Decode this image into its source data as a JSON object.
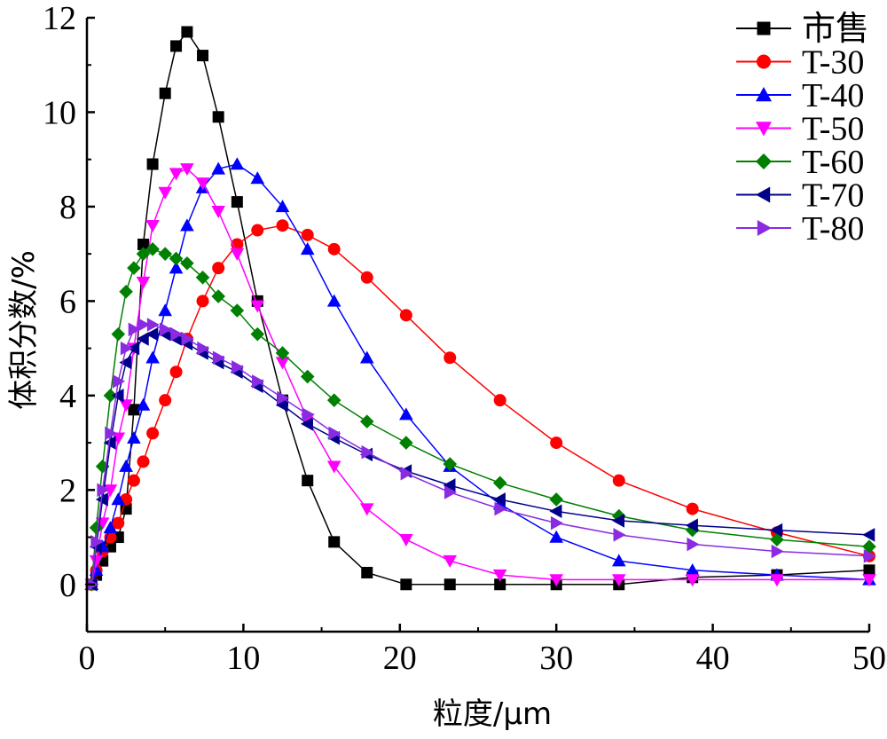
{
  "chart_data": {
    "type": "line",
    "xlabel": "粒度/μm",
    "ylabel": "体积分数/%",
    "xlim": [
      0,
      50
    ],
    "ylim": [
      -1,
      12
    ],
    "xticks": [
      0,
      10,
      20,
      30,
      40,
      50
    ],
    "yticks": [
      0,
      2,
      4,
      6,
      8,
      10,
      12
    ],
    "legend_position": "top-right",
    "series": [
      {
        "name": "市售",
        "color": "#000000",
        "marker": "square",
        "points": [
          [
            0.3,
            0.0
          ],
          [
            0.6,
            0.2
          ],
          [
            1.0,
            0.5
          ],
          [
            1.5,
            0.8
          ],
          [
            2.0,
            1.0
          ],
          [
            2.5,
            1.6
          ],
          [
            3.0,
            3.7
          ],
          [
            3.6,
            7.2
          ],
          [
            4.2,
            8.9
          ],
          [
            5.0,
            10.4
          ],
          [
            5.7,
            11.4
          ],
          [
            6.4,
            11.7
          ],
          [
            7.4,
            11.2
          ],
          [
            8.4,
            9.9
          ],
          [
            9.6,
            8.1
          ],
          [
            10.9,
            6.0
          ],
          [
            12.5,
            3.9
          ],
          [
            14.1,
            2.2
          ],
          [
            15.8,
            0.9
          ],
          [
            17.9,
            0.25
          ],
          [
            20.4,
            0.0
          ],
          [
            23.2,
            0.0
          ],
          [
            26.4,
            0.0
          ],
          [
            30.0,
            0.0
          ],
          [
            34.0,
            0.0
          ],
          [
            38.7,
            0.15
          ],
          [
            44.1,
            0.2
          ],
          [
            50.0,
            0.3
          ]
        ]
      },
      {
        "name": "T-30",
        "color": "#ff0000",
        "marker": "circle",
        "points": [
          [
            0.3,
            0.0
          ],
          [
            0.6,
            0.3
          ],
          [
            1.0,
            0.7
          ],
          [
            1.5,
            1.0
          ],
          [
            2.0,
            1.3
          ],
          [
            2.5,
            1.8
          ],
          [
            3.0,
            2.2
          ],
          [
            3.6,
            2.6
          ],
          [
            4.2,
            3.2
          ],
          [
            5.0,
            3.9
          ],
          [
            5.7,
            4.5
          ],
          [
            6.4,
            5.2
          ],
          [
            7.4,
            6.0
          ],
          [
            8.4,
            6.7
          ],
          [
            9.6,
            7.2
          ],
          [
            10.9,
            7.5
          ],
          [
            12.5,
            7.6
          ],
          [
            14.1,
            7.4
          ],
          [
            15.8,
            7.1
          ],
          [
            17.9,
            6.5
          ],
          [
            20.4,
            5.7
          ],
          [
            23.2,
            4.8
          ],
          [
            26.4,
            3.9
          ],
          [
            30.0,
            3.0
          ],
          [
            34.0,
            2.2
          ],
          [
            38.7,
            1.6
          ],
          [
            44.1,
            1.1
          ],
          [
            50.0,
            0.6
          ]
        ]
      },
      {
        "name": "T-40",
        "color": "#0000ff",
        "marker": "triangle-up",
        "points": [
          [
            0.3,
            0.0
          ],
          [
            0.6,
            0.3
          ],
          [
            1.0,
            0.8
          ],
          [
            1.5,
            1.2
          ],
          [
            2.0,
            1.8
          ],
          [
            2.5,
            2.5
          ],
          [
            3.0,
            3.1
          ],
          [
            3.6,
            3.8
          ],
          [
            4.2,
            4.8
          ],
          [
            5.0,
            5.8
          ],
          [
            5.7,
            6.7
          ],
          [
            6.4,
            7.6
          ],
          [
            7.4,
            8.4
          ],
          [
            8.4,
            8.8
          ],
          [
            9.6,
            8.9
          ],
          [
            10.9,
            8.6
          ],
          [
            12.5,
            8.0
          ],
          [
            14.1,
            7.1
          ],
          [
            15.8,
            6.0
          ],
          [
            17.9,
            4.8
          ],
          [
            20.4,
            3.6
          ],
          [
            23.2,
            2.5
          ],
          [
            26.4,
            1.7
          ],
          [
            30.0,
            1.0
          ],
          [
            34.0,
            0.5
          ],
          [
            38.7,
            0.3
          ],
          [
            44.1,
            0.2
          ],
          [
            50.0,
            0.1
          ]
        ]
      },
      {
        "name": "T-50",
        "color": "#ff00ff",
        "marker": "triangle-down",
        "points": [
          [
            0.3,
            0.0
          ],
          [
            0.6,
            0.5
          ],
          [
            1.0,
            1.3
          ],
          [
            1.5,
            2.0
          ],
          [
            2.0,
            3.1
          ],
          [
            2.5,
            3.8
          ],
          [
            3.0,
            5.0
          ],
          [
            3.6,
            6.4
          ],
          [
            4.2,
            7.6
          ],
          [
            5.0,
            8.3
          ],
          [
            5.7,
            8.7
          ],
          [
            6.4,
            8.8
          ],
          [
            7.4,
            8.5
          ],
          [
            8.4,
            7.9
          ],
          [
            9.6,
            7.0
          ],
          [
            10.9,
            5.9
          ],
          [
            12.5,
            4.7
          ],
          [
            14.1,
            3.5
          ],
          [
            15.8,
            2.5
          ],
          [
            17.9,
            1.6
          ],
          [
            20.4,
            0.95
          ],
          [
            23.2,
            0.5
          ],
          [
            26.4,
            0.2
          ],
          [
            30.0,
            0.1
          ],
          [
            34.0,
            0.1
          ],
          [
            38.7,
            0.1
          ],
          [
            44.1,
            0.1
          ],
          [
            50.0,
            0.1
          ]
        ]
      },
      {
        "name": "T-60",
        "color": "#008000",
        "marker": "diamond",
        "points": [
          [
            0.3,
            0.0
          ],
          [
            0.6,
            1.2
          ],
          [
            1.0,
            2.5
          ],
          [
            1.5,
            4.0
          ],
          [
            2.0,
            5.3
          ],
          [
            2.5,
            6.2
          ],
          [
            3.0,
            6.7
          ],
          [
            3.6,
            7.0
          ],
          [
            4.2,
            7.1
          ],
          [
            5.0,
            7.0
          ],
          [
            5.7,
            6.9
          ],
          [
            6.4,
            6.8
          ],
          [
            7.4,
            6.5
          ],
          [
            8.4,
            6.1
          ],
          [
            9.6,
            5.8
          ],
          [
            10.9,
            5.3
          ],
          [
            12.5,
            4.9
          ],
          [
            14.1,
            4.4
          ],
          [
            15.8,
            3.9
          ],
          [
            17.9,
            3.45
          ],
          [
            20.4,
            3.0
          ],
          [
            23.2,
            2.55
          ],
          [
            26.4,
            2.15
          ],
          [
            30.0,
            1.8
          ],
          [
            34.0,
            1.45
          ],
          [
            38.7,
            1.15
          ],
          [
            44.1,
            0.95
          ],
          [
            50.0,
            0.8
          ]
        ]
      },
      {
        "name": "T-70",
        "color": "#00008b",
        "marker": "triangle-left",
        "points": [
          [
            0.3,
            0.0
          ],
          [
            0.6,
            0.8
          ],
          [
            1.0,
            1.8
          ],
          [
            1.5,
            3.0
          ],
          [
            2.0,
            4.0
          ],
          [
            2.5,
            4.7
          ],
          [
            3.0,
            5.0
          ],
          [
            3.6,
            5.2
          ],
          [
            4.2,
            5.3
          ],
          [
            5.0,
            5.3
          ],
          [
            5.7,
            5.2
          ],
          [
            6.4,
            5.1
          ],
          [
            7.4,
            4.9
          ],
          [
            8.4,
            4.7
          ],
          [
            9.6,
            4.5
          ],
          [
            10.9,
            4.2
          ],
          [
            12.5,
            3.8
          ],
          [
            14.1,
            3.4
          ],
          [
            15.8,
            3.1
          ],
          [
            17.9,
            2.75
          ],
          [
            20.4,
            2.4
          ],
          [
            23.2,
            2.1
          ],
          [
            26.4,
            1.8
          ],
          [
            30.0,
            1.55
          ],
          [
            34.0,
            1.35
          ],
          [
            38.7,
            1.25
          ],
          [
            44.1,
            1.15
          ],
          [
            50.0,
            1.05
          ]
        ]
      },
      {
        "name": "T-80",
        "color": "#8a2be2",
        "marker": "triangle-right",
        "points": [
          [
            0.3,
            0.0
          ],
          [
            0.6,
            0.9
          ],
          [
            1.0,
            2.0
          ],
          [
            1.5,
            3.2
          ],
          [
            2.0,
            4.3
          ],
          [
            2.5,
            5.0
          ],
          [
            3.0,
            5.4
          ],
          [
            3.6,
            5.5
          ],
          [
            4.2,
            5.5
          ],
          [
            5.0,
            5.4
          ],
          [
            5.7,
            5.3
          ],
          [
            6.4,
            5.2
          ],
          [
            7.4,
            5.0
          ],
          [
            8.4,
            4.8
          ],
          [
            9.6,
            4.6
          ],
          [
            10.9,
            4.3
          ],
          [
            12.5,
            3.95
          ],
          [
            14.1,
            3.6
          ],
          [
            15.8,
            3.2
          ],
          [
            17.9,
            2.8
          ],
          [
            20.4,
            2.35
          ],
          [
            23.2,
            1.95
          ],
          [
            26.4,
            1.6
          ],
          [
            30.0,
            1.3
          ],
          [
            34.0,
            1.05
          ],
          [
            38.7,
            0.85
          ],
          [
            44.1,
            0.7
          ],
          [
            50.0,
            0.6
          ]
        ]
      }
    ]
  }
}
